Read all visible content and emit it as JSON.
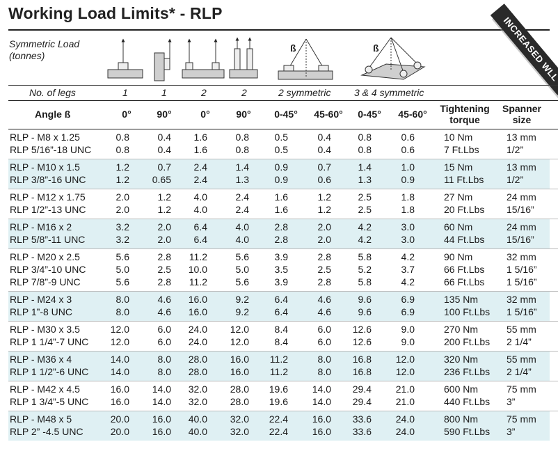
{
  "title": "Working Load Limits* - RLP",
  "banner": "INCREASED WLL",
  "symmetric_label": [
    "Symmetric Load",
    "(tonnes)"
  ],
  "beta_symbol": "ß",
  "legs_label": "No. of legs",
  "legs": [
    "1",
    "1",
    "2",
    "2",
    "2 symmetric",
    "3 & 4 symmetric"
  ],
  "angle_label": "Angle ß",
  "angles": [
    "0°",
    "90°",
    "0°",
    "90°",
    "0-45°",
    "45-60°",
    "0-45°",
    "45-60°"
  ],
  "torque_label": [
    "Tightening",
    "torque"
  ],
  "spanner_label": [
    "Spanner",
    "size"
  ],
  "groups": [
    {
      "rows": [
        [
          "RLP - M8 x 1.25",
          "0.8",
          "0.4",
          "1.6",
          "0.8",
          "0.5",
          "0.4",
          "0.8",
          "0.6",
          "10 Nm",
          "13 mm"
        ],
        [
          "RLP 5/16”-18 UNC",
          "0.8",
          "0.4",
          "1.6",
          "0.8",
          "0.5",
          "0.4",
          "0.8",
          "0.6",
          "7 Ft.Lbs",
          "1/2”"
        ]
      ]
    },
    {
      "rows": [
        [
          "RLP - M10 x 1.5",
          "1.2",
          "0.7",
          "2.4",
          "1.4",
          "0.9",
          "0.7",
          "1.4",
          "1.0",
          "15 Nm",
          "13 mm"
        ],
        [
          "RLP 3/8”-16 UNC",
          "1.2",
          "0.65",
          "2.4",
          "1.3",
          "0.9",
          "0.6",
          "1.3",
          "0.9",
          "11 Ft.Lbs",
          "1/2”"
        ]
      ]
    },
    {
      "rows": [
        [
          "RLP - M12 x 1.75",
          "2.0",
          "1.2",
          "4.0",
          "2.4",
          "1.6",
          "1.2",
          "2.5",
          "1.8",
          "27 Nm",
          "24 mm"
        ],
        [
          "RLP 1/2”-13 UNC",
          "2.0",
          "1.2",
          "4.0",
          "2.4",
          "1.6",
          "1.2",
          "2.5",
          "1.8",
          "20 Ft.Lbs",
          "15/16”"
        ]
      ]
    },
    {
      "rows": [
        [
          "RLP - M16 x 2",
          "3.2",
          "2.0",
          "6.4",
          "4.0",
          "2.8",
          "2.0",
          "4.2",
          "3.0",
          "60 Nm",
          "24 mm"
        ],
        [
          "RLP 5/8”-11 UNC",
          "3.2",
          "2.0",
          "6.4",
          "4.0",
          "2.8",
          "2.0",
          "4.2",
          "3.0",
          "44 Ft.Lbs",
          "15/16”"
        ]
      ]
    },
    {
      "rows": [
        [
          "RLP - M20 x 2.5",
          "5.6",
          "2.8",
          "11.2",
          "5.6",
          "3.9",
          "2.8",
          "5.8",
          "4.2",
          "90 Nm",
          "32 mm"
        ],
        [
          "RLP 3/4”-10 UNC",
          "5.0",
          "2.5",
          "10.0",
          "5.0",
          "3.5",
          "2.5",
          "5.2",
          "3.7",
          "66 Ft.Lbs",
          "1 5/16”"
        ],
        [
          "RLP 7/8”-9 UNC",
          "5.6",
          "2.8",
          "11.2",
          "5.6",
          "3.9",
          "2.8",
          "5.8",
          "4.2",
          "66 Ft.Lbs",
          "1 5/16”"
        ]
      ]
    },
    {
      "rows": [
        [
          "RLP - M24 x 3",
          "8.0",
          "4.6",
          "16.0",
          "9.2",
          "6.4",
          "4.6",
          "9.6",
          "6.9",
          "135 Nm",
          "32 mm"
        ],
        [
          "RLP 1”-8 UNC",
          "8.0",
          "4.6",
          "16.0",
          "9.2",
          "6.4",
          "4.6",
          "9.6",
          "6.9",
          "100 Ft.Lbs",
          "1 5/16”"
        ]
      ]
    },
    {
      "rows": [
        [
          "RLP - M30 x 3.5",
          "12.0",
          "6.0",
          "24.0",
          "12.0",
          "8.4",
          "6.0",
          "12.6",
          "9.0",
          "270 Nm",
          "55 mm"
        ],
        [
          "RLP 1 1/4”-7 UNC",
          "12.0",
          "6.0",
          "24.0",
          "12.0",
          "8.4",
          "6.0",
          "12.6",
          "9.0",
          "200 Ft.Lbs",
          "2  1/4”"
        ]
      ]
    },
    {
      "rows": [
        [
          "RLP - M36 x 4",
          "14.0",
          "8.0",
          "28.0",
          "16.0",
          "11.2",
          "8.0",
          "16.8",
          "12.0",
          "320 Nm",
          "55 mm"
        ],
        [
          "RLP 1 1/2”-6 UNC",
          "14.0",
          "8.0",
          "28.0",
          "16.0",
          "11.2",
          "8.0",
          "16.8",
          "12.0",
          "236 Ft.Lbs",
          "2 1/4”"
        ]
      ]
    },
    {
      "rows": [
        [
          "RLP - M42 x 4.5",
          "16.0",
          "14.0",
          "32.0",
          "28.0",
          "19.6",
          "14.0",
          "29.4",
          "21.0",
          "600 Nm",
          "75 mm"
        ],
        [
          "RLP 1 3/4”-5 UNC",
          "16.0",
          "14.0",
          "32.0",
          "28.0",
          "19.6",
          "14.0",
          "29.4",
          "21.0",
          "440 Ft.Lbs",
          "3”"
        ]
      ]
    },
    {
      "rows": [
        [
          "RLP - M48 x 5",
          "20.0",
          "16.0",
          "40.0",
          "32.0",
          "22.4",
          "16.0",
          "33.6",
          "24.0",
          "800 Nm",
          "75 mm"
        ],
        [
          "RLP 2” -4.5 UNC",
          "20.0",
          "16.0",
          "40.0",
          "32.0",
          "22.4",
          "16.0",
          "33.6",
          "24.0",
          "590 Ft.Lbs",
          "3”"
        ]
      ]
    }
  ],
  "colors": {
    "shade": "#dff0f3",
    "banner": "#2a2a2a",
    "text": "#1a1a1a"
  }
}
